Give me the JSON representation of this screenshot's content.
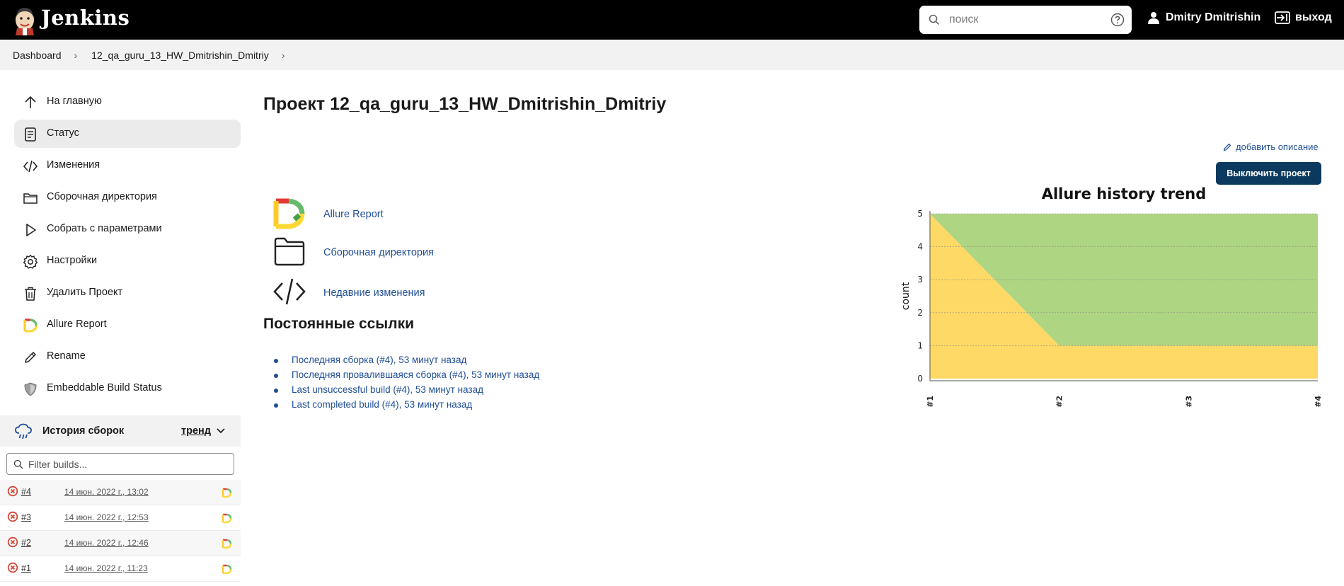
{
  "header": {
    "brand": "Jenkins",
    "search_placeholder": "поиск",
    "user_name": "Dmitry Dmitrishin",
    "logout_label": "выход"
  },
  "breadcrumb": {
    "items": [
      "Dashboard",
      "12_qa_guru_13_HW_Dmitrishin_Dmitriy"
    ]
  },
  "sidebar": {
    "items": [
      {
        "label": "На главную",
        "icon": "arrow-up-icon"
      },
      {
        "label": "Статус",
        "icon": "document-icon"
      },
      {
        "label": "Изменения",
        "icon": "code-icon"
      },
      {
        "label": "Сборочная директория",
        "icon": "folder-icon"
      },
      {
        "label": "Собрать с параметрами",
        "icon": "play-icon"
      },
      {
        "label": "Настройки",
        "icon": "gear-icon"
      },
      {
        "label": "Удалить Проект",
        "icon": "trash-icon"
      },
      {
        "label": "Allure Report",
        "icon": "allure-icon"
      },
      {
        "label": "Rename",
        "icon": "pencil-icon"
      },
      {
        "label": "Embeddable Build Status",
        "icon": "shield-icon"
      }
    ]
  },
  "history": {
    "title": "История сборок",
    "trend_label": "тренд",
    "filter_placeholder": "Filter builds...",
    "builds": [
      {
        "number": "#4",
        "date": "14 июн. 2022 г., 13:02"
      },
      {
        "number": "#3",
        "date": "14 июн. 2022 г., 12:53"
      },
      {
        "number": "#2",
        "date": "14 июн. 2022 г., 12:46"
      },
      {
        "number": "#1",
        "date": "14 июн. 2022 г., 11:23"
      }
    ]
  },
  "main": {
    "title": "Проект 12_qa_guru_13_HW_Dmitrishin_Dmitriy",
    "add_description": "добавить описание",
    "disable_button": "Выключить проект",
    "links": [
      {
        "label": "Allure Report",
        "icon": "allure-logo-icon"
      },
      {
        "label": "Сборочная директория",
        "icon": "folder-icon"
      },
      {
        "label": "Недавние изменения",
        "icon": "code-icon"
      }
    ],
    "permalinks_title": "Постоянные ссылки",
    "permalinks": [
      "Последняя сборка (#4), 53 минут назад",
      "Последняя провалившаяся сборка (#4), 53 минут назад",
      "Last unsuccessful build (#4), 53 минут назад",
      "Last completed build (#4), 53 минут назад"
    ]
  },
  "colors": {
    "passed": "#aed581",
    "broken": "#ffd966",
    "failed_icon": "#d24939",
    "link": "#1f4e96",
    "button": "#0b3a5e"
  },
  "chart_data": {
    "type": "area",
    "title": "Allure history trend",
    "xlabel": "",
    "ylabel": "count",
    "x": [
      "#1",
      "#2",
      "#3",
      "#4"
    ],
    "ylim": [
      0,
      5
    ],
    "yticks": [
      0,
      1,
      2,
      3,
      4,
      5
    ],
    "stacked": true,
    "grid": true,
    "series": [
      {
        "color": "#ffd966",
        "values": [
          5,
          1,
          1,
          1
        ]
      },
      {
        "color": "#aed581",
        "values": [
          0,
          4,
          4,
          4
        ]
      }
    ]
  }
}
